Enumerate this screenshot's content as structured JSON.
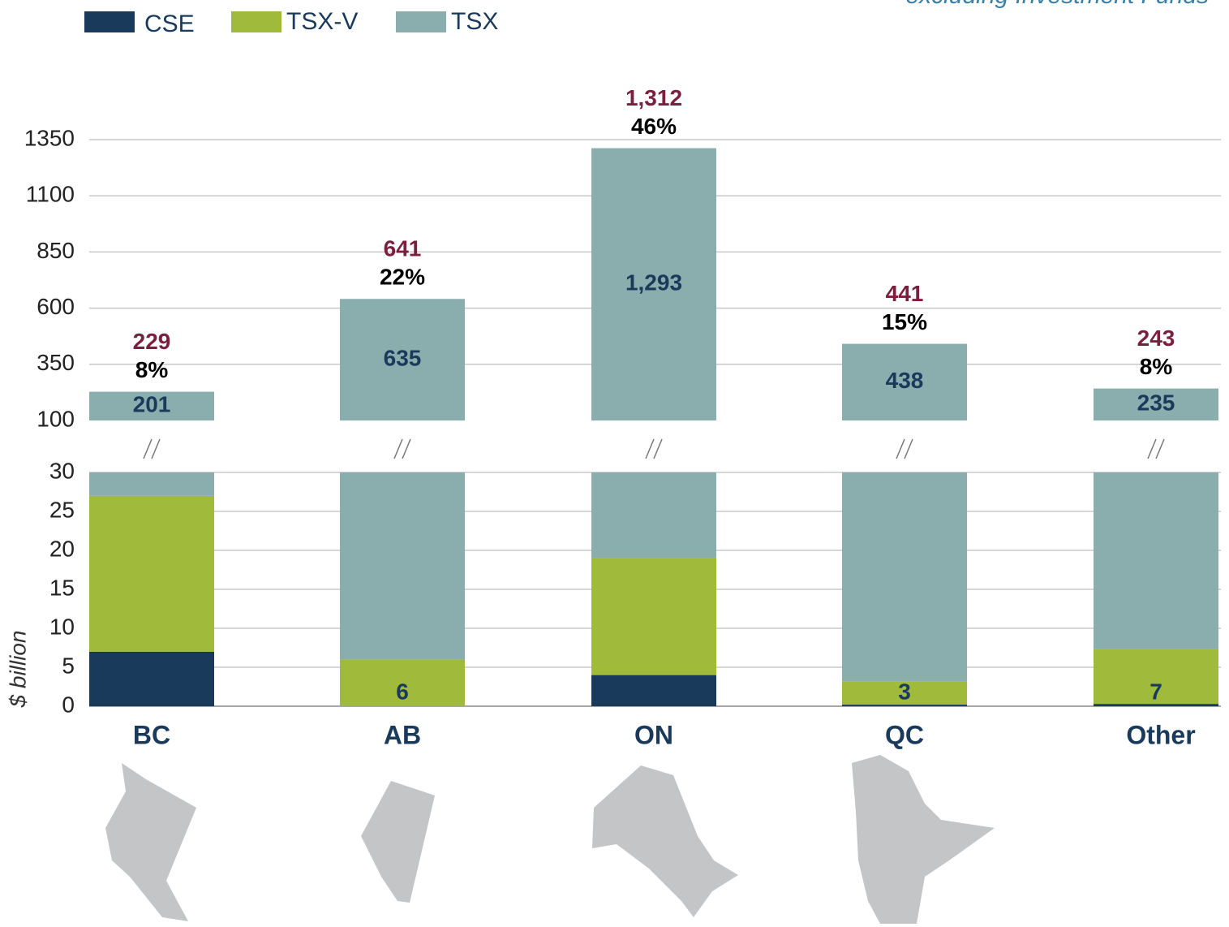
{
  "chart_data": {
    "type": "stacked-bar-broken-axis",
    "subtitle": "excluding Investment Funds",
    "y_axis_label": "$ billion",
    "categories": [
      "BC",
      "AB",
      "ON",
      "QC",
      "Other"
    ],
    "series": [
      {
        "name": "CSE",
        "color": "#1a3a5c",
        "values": [
          7,
          0,
          4,
          0.2,
          0.3
        ],
        "value_labels": [
          "7",
          null,
          "4",
          null,
          null
        ]
      },
      {
        "name": "TSX-V",
        "color": "#a0ba3c",
        "values": [
          20,
          6,
          15,
          3,
          7
        ],
        "value_labels": [
          "20",
          "6",
          "15",
          "3",
          "7"
        ]
      },
      {
        "name": "TSX",
        "color": "#8aaeae",
        "values": [
          201,
          635,
          1293,
          438,
          235
        ],
        "value_labels": [
          "201",
          "635",
          "1,293",
          "438",
          "235"
        ]
      }
    ],
    "totals": [
      229,
      641,
      1312,
      441,
      243
    ],
    "total_labels": [
      "229",
      "641",
      "1,312",
      "441",
      "243"
    ],
    "shares": [
      8,
      22,
      46,
      15,
      8
    ],
    "share_labels": [
      "8%",
      "22%",
      "46%",
      "15%",
      "8%"
    ],
    "ylim": [
      0,
      30
    ],
    "yticks": [
      0,
      5,
      10,
      15,
      20,
      25,
      30
    ],
    "y2lim": [
      100,
      1350
    ],
    "y2ticks": [
      100,
      350,
      600,
      850,
      1100,
      1350
    ],
    "grid": true
  }
}
